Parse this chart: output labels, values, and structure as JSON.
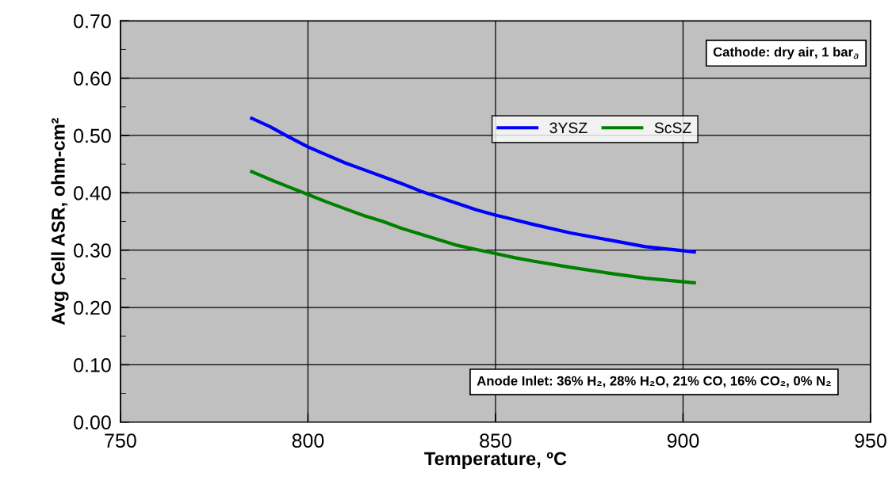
{
  "chart_data": {
    "type": "line",
    "xlabel": "Temperature, ºC",
    "ylabel": "Avg Cell ASR, ohm-cm²",
    "x": [
      785,
      790,
      795,
      800,
      805,
      810,
      815,
      820,
      825,
      830,
      835,
      840,
      845,
      850,
      855,
      860,
      870,
      880,
      890,
      903
    ],
    "series": [
      {
        "name": "3YSZ",
        "color": "#0000ff",
        "values": [
          0.53,
          0.515,
          0.497,
          0.48,
          0.466,
          0.452,
          0.44,
          0.428,
          0.416,
          0.403,
          0.392,
          0.381,
          0.37,
          0.361,
          0.353,
          0.345,
          0.33,
          0.318,
          0.306,
          0.297
        ]
      },
      {
        "name": "ScSZ",
        "color": "#008000",
        "values": [
          0.437,
          0.423,
          0.41,
          0.397,
          0.384,
          0.372,
          0.36,
          0.35,
          0.338,
          0.328,
          0.318,
          0.308,
          0.301,
          0.294,
          0.287,
          0.281,
          0.27,
          0.26,
          0.251,
          0.243
        ]
      }
    ],
    "xlim": [
      750,
      950
    ],
    "xticks": [
      750,
      800,
      850,
      900,
      950
    ],
    "ylim": [
      0,
      0.7
    ],
    "yticks": [
      {
        "value": 0,
        "label": "0.00"
      },
      {
        "value": 0.05,
        "label": null
      },
      {
        "value": 0.1,
        "label": "0.10"
      },
      {
        "value": 0.15,
        "label": null
      },
      {
        "value": 0.2,
        "label": "0.20"
      },
      {
        "value": 0.25,
        "label": null
      },
      {
        "value": 0.3,
        "label": "0.30"
      },
      {
        "value": 0.35,
        "label": null
      },
      {
        "value": 0.4,
        "label": "0.40"
      },
      {
        "value": 0.45,
        "label": null
      },
      {
        "value": 0.5,
        "label": "0.50"
      },
      {
        "value": 0.55,
        "label": null
      },
      {
        "value": 0.6,
        "label": "0.60"
      },
      {
        "value": 0.65,
        "label": null
      },
      {
        "value": 0.7,
        "label": "0.70"
      }
    ],
    "grid": true,
    "legend": "center right",
    "marker": "none",
    "line_style": "solid",
    "annotations": [
      "Cathode: dry air, 1 bar$_{a}$",
      "Anode Inlet: 36% H₂, 28% H₂O, 21% CO, 16% CO₂, 0% N₂"
    ]
  }
}
